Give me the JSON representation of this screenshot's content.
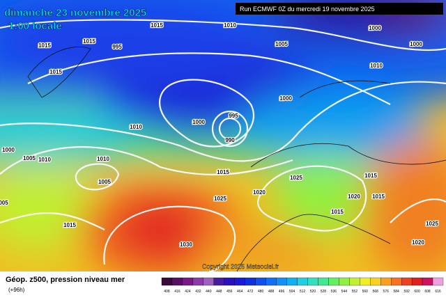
{
  "header": {
    "date": "dimanche 23 novembre 2025",
    "time": "1:00 locale",
    "run": "Run ECMWF 0Z du mercredi 19 novembre 2025"
  },
  "isobar_labels": [
    "1015",
    "1010",
    "1015",
    "1015",
    "995",
    "1005",
    "1000",
    "1000",
    "1015",
    "1010",
    "1000",
    "995",
    "1000",
    "990",
    "1010",
    "1000",
    "1005",
    "1010",
    "1010",
    "1005",
    "1015",
    "1025",
    "1015",
    "1020",
    "1025",
    "1020",
    "1015",
    "1015",
    "1015",
    "1030",
    "1025",
    "1020",
    "005"
  ],
  "copyright": "Copyright 2025 Meteociel.fr",
  "legend": {
    "title": "Géop. z500, pression niveau mer",
    "lead": "(+96h)",
    "ticks": [
      408,
      416,
      424,
      432,
      440,
      448,
      456,
      464,
      472,
      480,
      488,
      496,
      504,
      512,
      520,
      528,
      536,
      544,
      552,
      560,
      568,
      576,
      584,
      592,
      600,
      608,
      616
    ],
    "colors": [
      "#3a0a3a",
      "#5a1060",
      "#7a1a8a",
      "#8a3aaa",
      "#a060c0",
      "#4a1aa0",
      "#2a10c0",
      "#1a1ad8",
      "#1030e0",
      "#1050f0",
      "#1070f8",
      "#1090f8",
      "#10b0f0",
      "#20d0e0",
      "#30e0c0",
      "#40e890",
      "#60f060",
      "#90f040",
      "#c0f030",
      "#f0f020",
      "#f8d020",
      "#f8a020",
      "#f87020",
      "#f04020",
      "#e02020",
      "#d01060",
      "#f0a0e0"
    ]
  }
}
